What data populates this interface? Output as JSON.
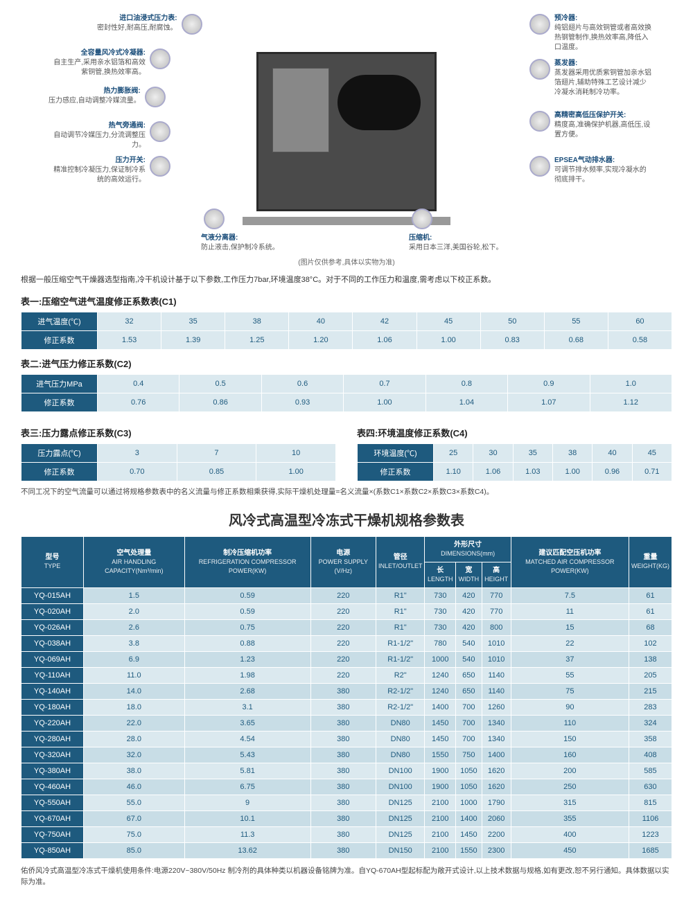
{
  "diagram": {
    "left": [
      {
        "t": "进口油浸式压力表:",
        "d": "密封性好,耐高压,耐腐蚀。"
      },
      {
        "t": "全容量风冷式冷凝器:",
        "d": "自主生产,采用亲水铝箔和高效紫铜管,换热效率高。"
      },
      {
        "t": "热力膨胀阀:",
        "d": "压力感应,自动调整冷媒流量。"
      },
      {
        "t": "热气旁通阀:",
        "d": "自动调节冷媒压力,分流调整压力。"
      },
      {
        "t": "压力开关:",
        "d": "精准控制冷凝压力,保证制冷系统的高效运行。"
      }
    ],
    "right": [
      {
        "t": "预冷器:",
        "d": "纯铝翅片与高效铜管或者高效换热钢管制作,换热效率高,降低入口温度。"
      },
      {
        "t": "蒸发器:",
        "d": "蒸发器采用优质紫铜管加亲水铝箔翅片,辅助特殊工艺设计减少冷凝水消耗制冷功率。"
      },
      {
        "t": "高精密高低压保护开关:",
        "d": "精度高,准确保护机器,高低压,设置方便。"
      },
      {
        "t": "EPSEA气动排水器:",
        "d": "可调节排水频率,实现冷凝水的彻底排干。"
      }
    ],
    "bottom": [
      {
        "t": "气液分离器:",
        "d": "防止液击,保护制冷系统。"
      },
      {
        "t": "压缩机:",
        "d": "采用日本三洋,美国谷轮,松下。"
      }
    ],
    "imgnote": "(图片仅供参考,具体以实物为准)"
  },
  "intro": "根据一般压缩空气干燥器选型指南,冷干机设计基于以下参数,工作压力7bar,环境温度38°C。对于不同的工作压力和温度,需考虑以下校正系数。",
  "table1": {
    "title": "表一:压缩空气进气温度修正系数表(C1)",
    "row1_label": "进气温度(℃)",
    "row1": [
      "32",
      "35",
      "38",
      "40",
      "42",
      "45",
      "50",
      "55",
      "60"
    ],
    "row2_label": "修正系数",
    "row2": [
      "1.53",
      "1.39",
      "1.25",
      "1.20",
      "1.06",
      "1.00",
      "0.83",
      "0.68",
      "0.58"
    ]
  },
  "table2": {
    "title": "表二:进气压力修正系数(C2)",
    "row1_label": "进气压力MPa",
    "row1": [
      "0.4",
      "0.5",
      "0.6",
      "0.7",
      "0.8",
      "0.9",
      "1.0"
    ],
    "row2_label": "修正系数",
    "row2": [
      "0.76",
      "0.86",
      "0.93",
      "1.00",
      "1.04",
      "1.07",
      "1.12"
    ]
  },
  "table3": {
    "title": "表三:压力露点修正系数(C3)",
    "row1_label": "压力露点(℃)",
    "row1": [
      "3",
      "7",
      "10"
    ],
    "row2_label": "修正系数",
    "row2": [
      "0.70",
      "0.85",
      "1.00"
    ]
  },
  "table4": {
    "title": "表四:环境温度修正系数(C4)",
    "row1_label": "环境温度(℃)",
    "row1": [
      "25",
      "30",
      "35",
      "38",
      "40",
      "45"
    ],
    "row2_label": "修正系数",
    "row2": [
      "1.10",
      "1.06",
      "1.03",
      "1.00",
      "0.96",
      "0.71"
    ]
  },
  "note_after_c": "不同工况下的空气流量可以通过将规格参数表中的名义流量与修正系数相乘获得,实际干燥机处理量=名义流量×(系数C1×系数C2×系数C3×系数C4)。",
  "main_title": "风冷式高温型冷冻式干燥机规格参数表",
  "spec_head": {
    "type": {
      "cn": "型号",
      "en": "TYPE"
    },
    "air": {
      "cn": "空气处理量",
      "en": "AIR HANDLING CAPACITY(Nm³/min)"
    },
    "refrig": {
      "cn": "制冷压缩机功率",
      "en": "REFRIGERATION COMPRESSOR POWER(KW)"
    },
    "power": {
      "cn": "电源",
      "en": "POWER SUPPLY (V/Hz)"
    },
    "pipe": {
      "cn": "管径",
      "en": "INLET/OUTLET"
    },
    "dim": {
      "cn": "外形尺寸",
      "en": "DIMENSIONS(mm)"
    },
    "len": {
      "cn": "长",
      "en": "LENGTH"
    },
    "wid": {
      "cn": "宽",
      "en": "WIDTH"
    },
    "hei": {
      "cn": "高",
      "en": "HEIGHT"
    },
    "match": {
      "cn": "建议匹配空压机功率",
      "en": "MATCHED AIR COMPRESSOR POWER(KW)"
    },
    "weight": {
      "cn": "重量",
      "en": "WEIGHT(KG)"
    }
  },
  "spec_rows": [
    [
      "YQ-015AH",
      "1.5",
      "0.59",
      "220",
      "R1\"",
      "730",
      "420",
      "770",
      "7.5",
      "61"
    ],
    [
      "YQ-020AH",
      "2.0",
      "0.59",
      "220",
      "R1\"",
      "730",
      "420",
      "770",
      "11",
      "61"
    ],
    [
      "YQ-026AH",
      "2.6",
      "0.75",
      "220",
      "R1\"",
      "730",
      "420",
      "800",
      "15",
      "68"
    ],
    [
      "YQ-038AH",
      "3.8",
      "0.88",
      "220",
      "R1-1/2\"",
      "780",
      "540",
      "1010",
      "22",
      "102"
    ],
    [
      "YQ-069AH",
      "6.9",
      "1.23",
      "220",
      "R1-1/2\"",
      "1000",
      "540",
      "1010",
      "37",
      "138"
    ],
    [
      "YQ-110AH",
      "11.0",
      "1.98",
      "220",
      "R2\"",
      "1240",
      "650",
      "1140",
      "55",
      "205"
    ],
    [
      "YQ-140AH",
      "14.0",
      "2.68",
      "380",
      "R2-1/2\"",
      "1240",
      "650",
      "1140",
      "75",
      "215"
    ],
    [
      "YQ-180AH",
      "18.0",
      "3.1",
      "380",
      "R2-1/2\"",
      "1400",
      "700",
      "1260",
      "90",
      "283"
    ],
    [
      "YQ-220AH",
      "22.0",
      "3.65",
      "380",
      "DN80",
      "1450",
      "700",
      "1340",
      "110",
      "324"
    ],
    [
      "YQ-280AH",
      "28.0",
      "4.54",
      "380",
      "DN80",
      "1450",
      "700",
      "1340",
      "150",
      "358"
    ],
    [
      "YQ-320AH",
      "32.0",
      "5.43",
      "380",
      "DN80",
      "1550",
      "750",
      "1400",
      "160",
      "408"
    ],
    [
      "YQ-380AH",
      "38.0",
      "5.81",
      "380",
      "DN100",
      "1900",
      "1050",
      "1620",
      "200",
      "585"
    ],
    [
      "YQ-460AH",
      "46.0",
      "6.75",
      "380",
      "DN100",
      "1900",
      "1050",
      "1620",
      "250",
      "630"
    ],
    [
      "YQ-550AH",
      "55.0",
      "9",
      "380",
      "DN125",
      "2100",
      "1000",
      "1790",
      "315",
      "815"
    ],
    [
      "YQ-670AH",
      "67.0",
      "10.1",
      "380",
      "DN125",
      "2100",
      "1400",
      "2060",
      "355",
      "1106"
    ],
    [
      "YQ-750AH",
      "75.0",
      "11.3",
      "380",
      "DN125",
      "2100",
      "1450",
      "2200",
      "400",
      "1223"
    ],
    [
      "YQ-850AH",
      "85.0",
      "13.62",
      "380",
      "DN150",
      "2100",
      "1550",
      "2300",
      "450",
      "1685"
    ]
  ],
  "footnote": "佑侨风冷式高温型冷冻式干燥机使用条件:电源220V~380V/50Hz 制冷剂的具体种类以机器设备铭牌为准。自YQ-670AH型起标配为敞开式设计,以上技术数据与规格,如有更改,恕不另行通知。具体数据以实际为准。"
}
